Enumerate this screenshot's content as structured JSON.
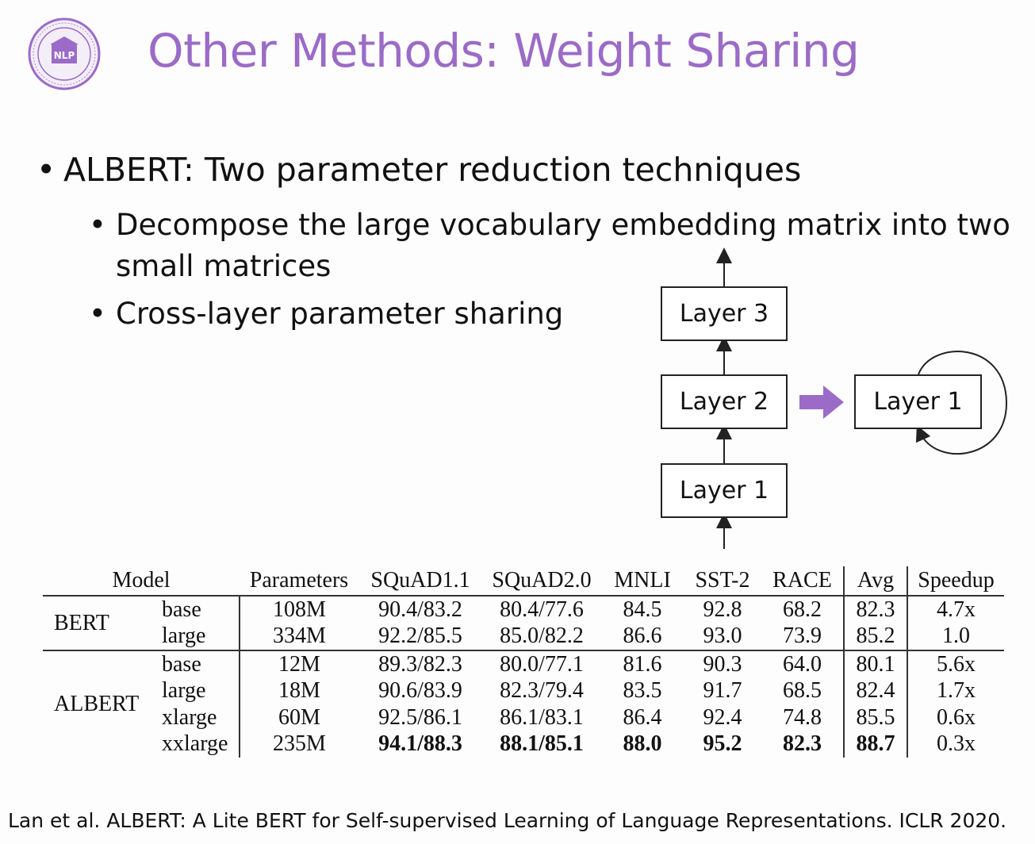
{
  "slide": {
    "title": "Other Methods: Weight Sharing",
    "logo_text": "NLP",
    "colors": {
      "title": "#9b6bc7",
      "arrow": "#9b6bc7",
      "logo": "#9b6bc7"
    }
  },
  "bullets": {
    "main": "ALBERT: Two parameter reduction techniques",
    "sub": [
      "Decompose the large vocabulary embedding matrix into two small matrices",
      "Cross-layer parameter sharing"
    ],
    "sub1_line1": "Decompose the large vocabulary embedding matrix into two",
    "sub1_line2": "small matrices",
    "bullet_char": "•"
  },
  "diagram": {
    "stack": [
      "Layer 3",
      "Layer 2",
      "Layer 1"
    ],
    "shared": "Layer 1"
  },
  "table": {
    "headers": [
      "Model",
      "Parameters",
      "SQuAD1.1",
      "SQuAD2.0",
      "MNLI",
      "SST-2",
      "RACE",
      "Avg",
      "Speedup"
    ],
    "groups": [
      {
        "name": "BERT",
        "rows": [
          {
            "size": "base",
            "params": "108M",
            "squad11": "90.4/83.2",
            "squad20": "80.4/77.6",
            "mnli": "84.5",
            "sst2": "92.8",
            "race": "68.2",
            "avg": "82.3",
            "speedup": "4.7x"
          },
          {
            "size": "large",
            "params": "334M",
            "squad11": "92.2/85.5",
            "squad20": "85.0/82.2",
            "mnli": "86.6",
            "sst2": "93.0",
            "race": "73.9",
            "avg": "85.2",
            "speedup": "1.0"
          }
        ]
      },
      {
        "name": "ALBERT",
        "rows": [
          {
            "size": "base",
            "params": "12M",
            "squad11": "89.3/82.3",
            "squad20": "80.0/77.1",
            "mnli": "81.6",
            "sst2": "90.3",
            "race": "64.0",
            "avg": "80.1",
            "speedup": "5.6x"
          },
          {
            "size": "large",
            "params": "18M",
            "squad11": "90.6/83.9",
            "squad20": "82.3/79.4",
            "mnli": "83.5",
            "sst2": "91.7",
            "race": "68.5",
            "avg": "82.4",
            "speedup": "1.7x"
          },
          {
            "size": "xlarge",
            "params": "60M",
            "squad11": "92.5/86.1",
            "squad20": "86.1/83.1",
            "mnli": "86.4",
            "sst2": "92.4",
            "race": "74.8",
            "avg": "85.5",
            "speedup": "0.6x"
          },
          {
            "size": "xxlarge",
            "params": "235M",
            "squad11": "94.1/88.3",
            "squad20": "88.1/85.1",
            "mnli": "88.0",
            "sst2": "95.2",
            "race": "82.3",
            "avg": "88.7",
            "speedup": "0.3x"
          }
        ]
      }
    ],
    "bold_row": "xxlarge"
  },
  "citation": "Lan et al. ALBERT: A Lite BERT for Self-supervised Learning of Language Representations. ICLR 2020."
}
